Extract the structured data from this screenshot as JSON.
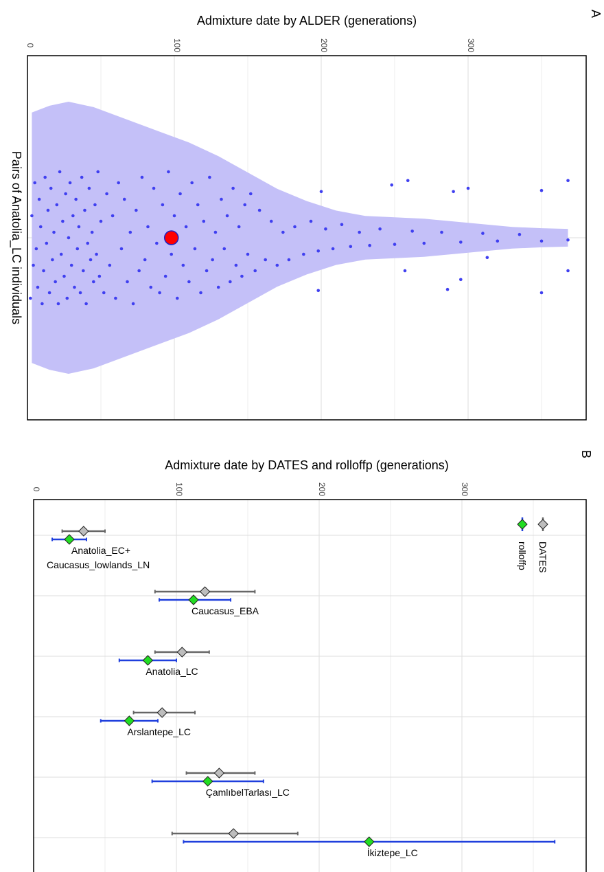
{
  "chart_data": [
    {
      "panel": "A",
      "type": "scatter",
      "subtype": "violin-with-jitter",
      "xlabel": "Admixture date by ALDER (generations)",
      "ylabel": "Pairs of Anatolia_LC individuals",
      "xlim": [
        0,
        370
      ],
      "xticks": [
        0,
        100,
        200,
        300
      ],
      "grid": true,
      "violin_color": "#c4c0f8",
      "point_color": "#3f3ff0",
      "summary_point": {
        "x": 98,
        "color": "#ff0000"
      },
      "violin_profile": [
        {
          "x": 3,
          "w": 0.92
        },
        {
          "x": 15,
          "w": 0.97
        },
        {
          "x": 28,
          "w": 1.0
        },
        {
          "x": 45,
          "w": 0.96
        },
        {
          "x": 65,
          "w": 0.88
        },
        {
          "x": 90,
          "w": 0.78
        },
        {
          "x": 110,
          "w": 0.7
        },
        {
          "x": 130,
          "w": 0.6
        },
        {
          "x": 150,
          "w": 0.48
        },
        {
          "x": 170,
          "w": 0.36
        },
        {
          "x": 190,
          "w": 0.27
        },
        {
          "x": 210,
          "w": 0.2
        },
        {
          "x": 230,
          "w": 0.16
        },
        {
          "x": 250,
          "w": 0.15
        },
        {
          "x": 270,
          "w": 0.14
        },
        {
          "x": 290,
          "w": 0.12
        },
        {
          "x": 310,
          "w": 0.1
        },
        {
          "x": 330,
          "w": 0.08
        },
        {
          "x": 350,
          "w": 0.07
        },
        {
          "x": 368,
          "w": 0.065
        }
      ],
      "points": [
        {
          "x": 2,
          "y": 0.55
        },
        {
          "x": 3,
          "y": -0.2
        },
        {
          "x": 4,
          "y": 0.25
        },
        {
          "x": 5,
          "y": -0.5
        },
        {
          "x": 6,
          "y": 0.1
        },
        {
          "x": 7,
          "y": 0.45
        },
        {
          "x": 8,
          "y": -0.35
        },
        {
          "x": 9,
          "y": -0.1
        },
        {
          "x": 10,
          "y": 0.6
        },
        {
          "x": 11,
          "y": 0.3
        },
        {
          "x": 12,
          "y": -0.55
        },
        {
          "x": 13,
          "y": 0.05
        },
        {
          "x": 14,
          "y": -0.25
        },
        {
          "x": 15,
          "y": 0.5
        },
        {
          "x": 16,
          "y": -0.45
        },
        {
          "x": 17,
          "y": 0.2
        },
        {
          "x": 18,
          "y": -0.05
        },
        {
          "x": 19,
          "y": 0.4
        },
        {
          "x": 20,
          "y": -0.3
        },
        {
          "x": 21,
          "y": 0.6
        },
        {
          "x": 22,
          "y": -0.6
        },
        {
          "x": 23,
          "y": 0.15
        },
        {
          "x": 24,
          "y": -0.15
        },
        {
          "x": 25,
          "y": 0.35
        },
        {
          "x": 26,
          "y": -0.4
        },
        {
          "x": 27,
          "y": 0.55
        },
        {
          "x": 28,
          "y": 0.0
        },
        {
          "x": 29,
          "y": -0.5
        },
        {
          "x": 30,
          "y": 0.25
        },
        {
          "x": 31,
          "y": -0.2
        },
        {
          "x": 32,
          "y": 0.45
        },
        {
          "x": 33,
          "y": -0.35
        },
        {
          "x": 34,
          "y": 0.1
        },
        {
          "x": 35,
          "y": -0.1
        },
        {
          "x": 36,
          "y": 0.5
        },
        {
          "x": 37,
          "y": -0.55
        },
        {
          "x": 38,
          "y": 0.3
        },
        {
          "x": 39,
          "y": -0.25
        },
        {
          "x": 40,
          "y": 0.6
        },
        {
          "x": 41,
          "y": 0.05
        },
        {
          "x": 42,
          "y": -0.45
        },
        {
          "x": 43,
          "y": 0.2
        },
        {
          "x": 44,
          "y": -0.05
        },
        {
          "x": 45,
          "y": 0.4
        },
        {
          "x": 46,
          "y": -0.3
        },
        {
          "x": 47,
          "y": 0.15
        },
        {
          "x": 48,
          "y": -0.6
        },
        {
          "x": 49,
          "y": 0.35
        },
        {
          "x": 50,
          "y": -0.15
        },
        {
          "x": 52,
          "y": 0.5
        },
        {
          "x": 54,
          "y": -0.4
        },
        {
          "x": 56,
          "y": 0.25
        },
        {
          "x": 58,
          "y": -0.2
        },
        {
          "x": 60,
          "y": 0.55
        },
        {
          "x": 62,
          "y": -0.5
        },
        {
          "x": 64,
          "y": 0.1
        },
        {
          "x": 66,
          "y": -0.35
        },
        {
          "x": 68,
          "y": 0.4
        },
        {
          "x": 70,
          "y": -0.05
        },
        {
          "x": 72,
          "y": 0.6
        },
        {
          "x": 74,
          "y": -0.25
        },
        {
          "x": 76,
          "y": 0.3
        },
        {
          "x": 78,
          "y": -0.55
        },
        {
          "x": 80,
          "y": 0.2
        },
        {
          "x": 82,
          "y": -0.1
        },
        {
          "x": 84,
          "y": 0.45
        },
        {
          "x": 86,
          "y": -0.45
        },
        {
          "x": 88,
          "y": 0.05
        },
        {
          "x": 90,
          "y": 0.5
        },
        {
          "x": 92,
          "y": -0.3
        },
        {
          "x": 94,
          "y": 0.35
        },
        {
          "x": 96,
          "y": -0.6
        },
        {
          "x": 98,
          "y": 0.15
        },
        {
          "x": 100,
          "y": -0.2
        },
        {
          "x": 102,
          "y": 0.55
        },
        {
          "x": 104,
          "y": -0.4
        },
        {
          "x": 106,
          "y": 0.25
        },
        {
          "x": 108,
          "y": -0.1
        },
        {
          "x": 110,
          "y": 0.4
        },
        {
          "x": 112,
          "y": -0.5
        },
        {
          "x": 114,
          "y": 0.1
        },
        {
          "x": 116,
          "y": -0.3
        },
        {
          "x": 118,
          "y": 0.5
        },
        {
          "x": 120,
          "y": -0.15
        },
        {
          "x": 122,
          "y": 0.3
        },
        {
          "x": 124,
          "y": -0.55
        },
        {
          "x": 126,
          "y": 0.2
        },
        {
          "x": 128,
          "y": -0.05
        },
        {
          "x": 130,
          "y": 0.45
        },
        {
          "x": 132,
          "y": -0.35
        },
        {
          "x": 134,
          "y": 0.1
        },
        {
          "x": 136,
          "y": -0.2
        },
        {
          "x": 138,
          "y": 0.4
        },
        {
          "x": 140,
          "y": -0.45
        },
        {
          "x": 142,
          "y": 0.25
        },
        {
          "x": 144,
          "y": -0.1
        },
        {
          "x": 146,
          "y": 0.35
        },
        {
          "x": 148,
          "y": -0.3
        },
        {
          "x": 150,
          "y": 0.15
        },
        {
          "x": 152,
          "y": -0.4
        },
        {
          "x": 155,
          "y": 0.3
        },
        {
          "x": 158,
          "y": -0.25
        },
        {
          "x": 162,
          "y": 0.2
        },
        {
          "x": 166,
          "y": -0.15
        },
        {
          "x": 170,
          "y": 0.25
        },
        {
          "x": 174,
          "y": -0.05
        },
        {
          "x": 178,
          "y": 0.2
        },
        {
          "x": 182,
          "y": -0.1
        },
        {
          "x": 188,
          "y": 0.15
        },
        {
          "x": 193,
          "y": -0.15
        },
        {
          "x": 198,
          "y": 0.12
        },
        {
          "x": 203,
          "y": -0.08
        },
        {
          "x": 208,
          "y": 0.1
        },
        {
          "x": 214,
          "y": -0.12
        },
        {
          "x": 220,
          "y": 0.08
        },
        {
          "x": 226,
          "y": -0.05
        },
        {
          "x": 233,
          "y": 0.07
        },
        {
          "x": 240,
          "y": -0.08
        },
        {
          "x": 250,
          "y": 0.06
        },
        {
          "x": 262,
          "y": -0.06
        },
        {
          "x": 270,
          "y": 0.05
        },
        {
          "x": 282,
          "y": -0.05
        },
        {
          "x": 295,
          "y": 0.04
        },
        {
          "x": 310,
          "y": -0.04
        },
        {
          "x": 320,
          "y": 0.03
        },
        {
          "x": 335,
          "y": -0.03
        },
        {
          "x": 350,
          "y": 0.03
        },
        {
          "x": 368,
          "y": 0.02
        },
        {
          "x": 198,
          "y": 0.48
        },
        {
          "x": 200,
          "y": -0.42
        },
        {
          "x": 248,
          "y": -0.48
        },
        {
          "x": 257,
          "y": 0.3
        },
        {
          "x": 259,
          "y": -0.52
        },
        {
          "x": 286,
          "y": 0.47
        },
        {
          "x": 290,
          "y": -0.42
        },
        {
          "x": 295,
          "y": 0.38
        },
        {
          "x": 300,
          "y": -0.45
        },
        {
          "x": 313,
          "y": 0.18
        },
        {
          "x": 350,
          "y": 0.5
        },
        {
          "x": 350,
          "y": -0.43
        },
        {
          "x": 368,
          "y": 0.3
        },
        {
          "x": 368,
          "y": -0.52
        }
      ]
    },
    {
      "panel": "B",
      "type": "scatter",
      "subtype": "point-with-error-bars",
      "xlabel": "Admixture date by DATES and rolloffp (generations)",
      "xlim": [
        0,
        370
      ],
      "xticks": [
        0,
        100,
        200,
        300
      ],
      "grid": true,
      "legend_position": "top-right",
      "categories": [
        "Anatolia_EC+ Caucasus_lowlands_LN",
        "Caucasus_EBA",
        "Anatolia_LC",
        "Arslantepe_LC",
        "ÇamlıbelTarlası_LC",
        "İkiztepe_LC"
      ],
      "series": [
        {
          "name": "DATES",
          "color": "#bdbdbd",
          "bar_color": "#666666",
          "values": [
            35,
            120,
            104,
            90,
            130,
            140
          ],
          "lower": [
            20,
            85,
            85,
            70,
            107,
            97
          ],
          "upper": [
            50,
            155,
            123,
            113,
            155,
            185
          ]
        },
        {
          "name": "rolloffp",
          "color": "#22dd22",
          "bar_color": "#1f3fdd",
          "values": [
            25,
            112,
            80,
            67,
            122,
            235
          ],
          "lower": [
            13,
            88,
            60,
            47,
            83,
            105
          ],
          "upper": [
            37,
            138,
            100,
            87,
            161,
            365
          ]
        }
      ]
    }
  ],
  "panel_a": {
    "letter": "A",
    "title": "Admixture date by ALDER (generations)",
    "ylabel": "Pairs of Anatolia_LC individuals",
    "tick_labels": [
      "0",
      "100",
      "200",
      "300"
    ]
  },
  "panel_b": {
    "letter": "B",
    "title": "Admixture date by DATES and rolloffp (generations)",
    "tick_labels": [
      "0",
      "100",
      "200",
      "300"
    ],
    "group_labels": [
      [
        "Anatolia_EC+",
        "Caucasus_lowlands_LN"
      ],
      [
        "Caucasus_EBA"
      ],
      [
        "Anatolia_LC"
      ],
      [
        "Arslantepe_LC"
      ],
      [
        "ÇamlıbelTarlası_LC"
      ],
      [
        "İkiztepe_LC"
      ]
    ],
    "legend": [
      "DATES",
      "rolloffp"
    ]
  }
}
